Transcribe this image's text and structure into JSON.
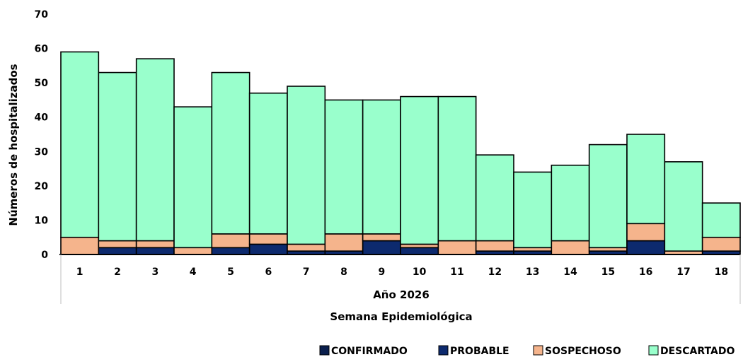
{
  "chart_data": {
    "type": "bar",
    "stacked": true,
    "categories": [
      "1",
      "2",
      "3",
      "4",
      "5",
      "6",
      "7",
      "8",
      "9",
      "10",
      "11",
      "12",
      "13",
      "14",
      "15",
      "16",
      "17",
      "18"
    ],
    "series": [
      {
        "name": "CONFIRMADO",
        "color": "#0a1f4d",
        "values": [
          0,
          0,
          0,
          0,
          0,
          0,
          0,
          0,
          0,
          0,
          0,
          0,
          0,
          0,
          0,
          0,
          0,
          0
        ]
      },
      {
        "name": "PROBABLE",
        "color": "#0d2a6e",
        "values": [
          0,
          2,
          2,
          0,
          2,
          3,
          1,
          1,
          4,
          2,
          0,
          1,
          1,
          0,
          1,
          4,
          0,
          1
        ]
      },
      {
        "name": "SOSPECHOSO",
        "color": "#f5b48c",
        "values": [
          5,
          2,
          2,
          2,
          4,
          3,
          2,
          5,
          2,
          1,
          4,
          3,
          1,
          4,
          1,
          5,
          1,
          4
        ]
      },
      {
        "name": "DESCARTADO",
        "color": "#99ffcc",
        "values": [
          54,
          49,
          53,
          41,
          47,
          41,
          46,
          39,
          39,
          43,
          42,
          25,
          22,
          22,
          30,
          26,
          26,
          10
        ]
      }
    ],
    "ylim": [
      0,
      70
    ],
    "yticks": [
      "0",
      "10",
      "20",
      "30",
      "40",
      "50",
      "60",
      "70"
    ],
    "group_label": "Año 2026",
    "xlabel": "Semana Epidemiológica",
    "ylabel": "Números de hospitalizados",
    "legend_position": "bottom-right",
    "grid": false
  }
}
